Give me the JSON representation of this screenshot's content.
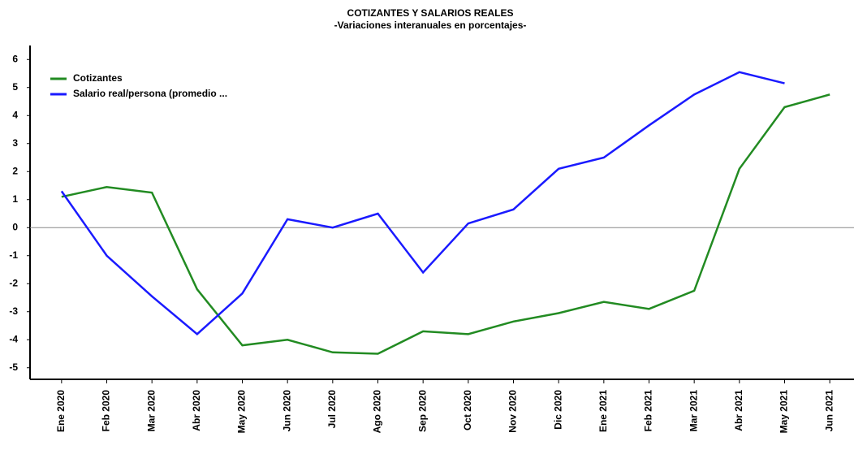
{
  "chart_data": {
    "type": "line",
    "title": "COTIZANTES Y SALARIOS REALES",
    "subtitle": "-Variaciones interanuales en porcentajes-",
    "categories": [
      "Ene 2020",
      "Feb 2020",
      "Mar 2020",
      "Abr 2020",
      "May 2020",
      "Jun 2020",
      "Jul 2020",
      "Ago 2020",
      "Sep 2020",
      "Oct 2020",
      "Nov 2020",
      "Dic 2020",
      "Ene 2021",
      "Feb 2021",
      "Mar 2021",
      "Abr 2021",
      "May 2021",
      "Jun 2021"
    ],
    "series": [
      {
        "name": "Cotizantes",
        "color": "#228b22",
        "values": [
          1.1,
          1.45,
          1.25,
          -2.2,
          -4.2,
          -4.0,
          -4.45,
          -4.5,
          -3.7,
          -3.8,
          -3.35,
          -3.05,
          -2.65,
          -2.9,
          -2.25,
          2.1,
          4.3,
          4.75
        ]
      },
      {
        "name": "Salario real/persona (promedio ...",
        "color": "#1a1aff",
        "values": [
          1.3,
          -1.0,
          -2.45,
          -3.8,
          -2.35,
          0.3,
          0.0,
          0.5,
          -1.6,
          0.15,
          0.65,
          2.1,
          2.5,
          3.65,
          4.75,
          5.55,
          5.15,
          null
        ]
      }
    ],
    "ylim": [
      -5.5,
      6.5
    ],
    "yticks": [
      -5,
      -4,
      -3,
      -2,
      -1,
      0,
      1,
      2,
      3,
      4,
      5,
      6
    ],
    "legend": "upper left"
  }
}
